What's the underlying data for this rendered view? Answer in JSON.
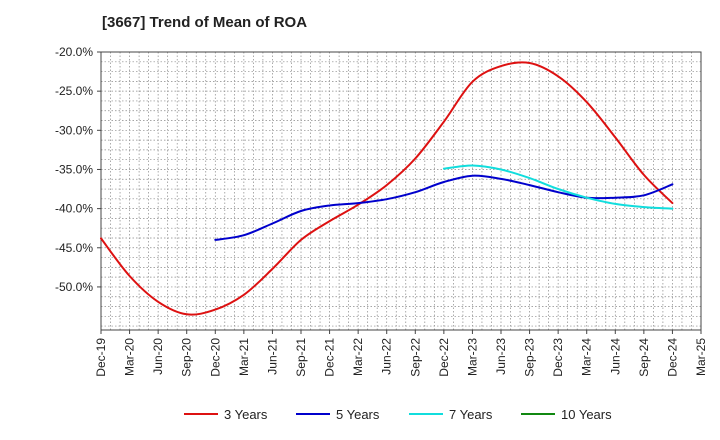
{
  "chart_data": {
    "type": "line",
    "title": "[3667]  Trend of Mean of ROA",
    "xlabel": "",
    "ylabel": "",
    "ylim": [
      -55.5,
      -20.0
    ],
    "y_ticks": [
      -20,
      -25,
      -30,
      -35,
      -40,
      -45,
      -50
    ],
    "y_tick_labels": [
      "-20.0%",
      "-25.0%",
      "-30.0%",
      "-35.0%",
      "-40.0%",
      "-45.0%",
      "-50.0%"
    ],
    "categories": [
      "Dec-19",
      "Mar-20",
      "Jun-20",
      "Sep-20",
      "Dec-20",
      "Mar-21",
      "Jun-21",
      "Sep-21",
      "Dec-21",
      "Mar-22",
      "Jun-22",
      "Sep-22",
      "Dec-22",
      "Mar-23",
      "Jun-23",
      "Sep-23",
      "Dec-23",
      "Mar-24",
      "Jun-24",
      "Sep-24",
      "Dec-24",
      "Mar-25"
    ],
    "grid": true,
    "legend_position": "bottom",
    "series": [
      {
        "name": "3 Years",
        "color": "#dd1111",
        "values": [
          -43.8,
          -48.6,
          -51.9,
          -53.5,
          -52.9,
          -51.0,
          -47.7,
          -44.0,
          -41.6,
          -39.5,
          -37.0,
          -33.6,
          -28.9,
          -23.8,
          -21.8,
          -21.4,
          -23.1,
          -26.4,
          -30.9,
          -35.7,
          -39.3,
          null
        ]
      },
      {
        "name": "5 Years",
        "color": "#0000cc",
        "values": [
          null,
          null,
          null,
          null,
          -44.0,
          -43.4,
          -41.9,
          -40.3,
          -39.6,
          -39.3,
          -38.8,
          -37.9,
          -36.6,
          -35.8,
          -36.2,
          -37.0,
          -37.9,
          -38.6,
          -38.6,
          -38.3,
          -36.9,
          null
        ]
      },
      {
        "name": "7 Years",
        "color": "#11dddd",
        "values": [
          null,
          null,
          null,
          null,
          null,
          null,
          null,
          null,
          null,
          null,
          null,
          null,
          -34.9,
          -34.5,
          -35.0,
          -36.1,
          -37.5,
          -38.6,
          -39.4,
          -39.8,
          -40.0,
          null
        ]
      },
      {
        "name": "10 Years",
        "color": "#118811",
        "values": [
          null,
          null,
          null,
          null,
          null,
          null,
          null,
          null,
          null,
          null,
          null,
          null,
          null,
          null,
          null,
          null,
          null,
          null,
          null,
          null,
          null,
          null
        ]
      }
    ]
  }
}
